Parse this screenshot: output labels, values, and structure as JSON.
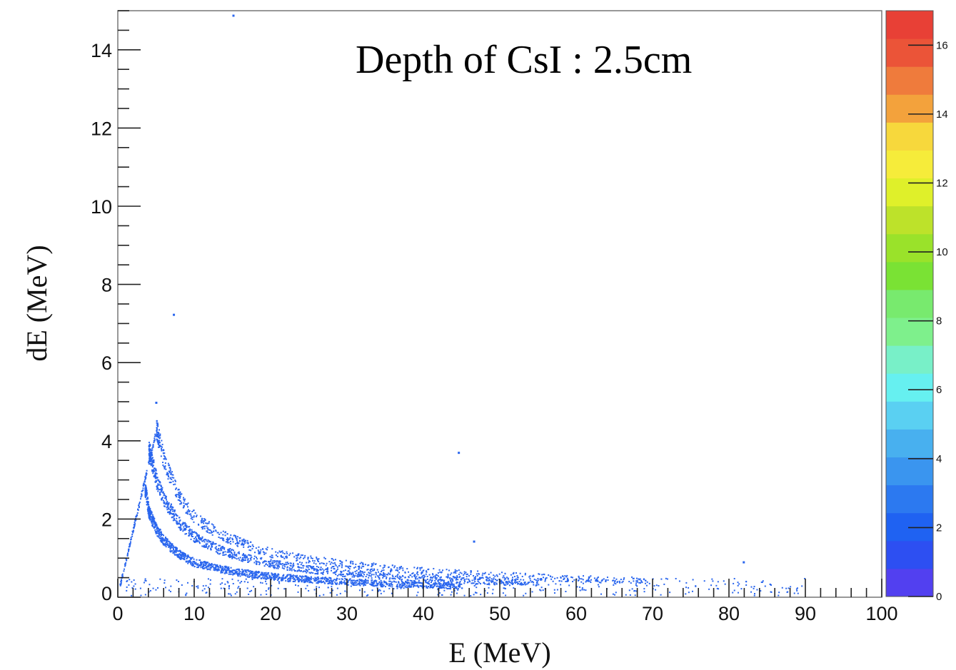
{
  "chart_data": {
    "type": "heatmap",
    "title": "",
    "annotation": "Depth of CsI : 2.5cm",
    "xlabel": "E (MeV)",
    "ylabel": "dE (MeV)",
    "xlim": [
      0,
      100
    ],
    "ylim": [
      0,
      15
    ],
    "x_ticks": [
      "0",
      "10",
      "20",
      "30",
      "40",
      "50",
      "60",
      "70",
      "80",
      "90",
      "100"
    ],
    "y_ticks": [
      "0",
      "2",
      "4",
      "6",
      "8",
      "10",
      "12",
      "14"
    ],
    "z_ticks": [
      "0",
      "2",
      "4",
      "6",
      "8",
      "10",
      "12",
      "14",
      "16"
    ],
    "zlim": [
      0,
      17
    ],
    "grid": false,
    "palette": [
      "#5240f0",
      "#2d4ff2",
      "#1f62f2",
      "#2c79f0",
      "#3a95ef",
      "#48b0ef",
      "#5ad0f2",
      "#66f0f0",
      "#78f0c8",
      "#7ef08c",
      "#78ea6e",
      "#7ae234",
      "#9ae22a",
      "#bde22a",
      "#dff02a",
      "#f6ec3a",
      "#f7d83c",
      "#f3a23c",
      "#ef7b3c",
      "#eb5438",
      "#e84036"
    ],
    "point_color": "#2a66ee",
    "bands": [
      {
        "name": "band-1",
        "x": [
          3.5,
          4,
          5,
          6,
          8,
          10,
          13,
          16,
          20,
          25,
          30,
          35,
          40,
          45
        ],
        "y": [
          2.8,
          2.2,
          1.75,
          1.45,
          1.1,
          0.9,
          0.75,
          0.64,
          0.55,
          0.47,
          0.41,
          0.36,
          0.33,
          0.3
        ]
      },
      {
        "name": "band-2",
        "x": [
          4,
          5,
          6,
          8,
          10,
          13,
          16,
          20,
          25,
          30,
          35,
          40,
          45,
          50,
          55
        ],
        "y": [
          3.8,
          3.0,
          2.5,
          1.9,
          1.55,
          1.25,
          1.05,
          0.87,
          0.73,
          0.63,
          0.56,
          0.5,
          0.45,
          0.41,
          0.38
        ]
      },
      {
        "name": "band-3",
        "x": [
          5,
          6,
          8,
          10,
          13,
          16,
          20,
          25,
          30,
          35,
          40,
          45,
          50,
          55,
          60,
          65,
          70
        ],
        "y": [
          4.3,
          3.5,
          2.55,
          2.05,
          1.65,
          1.4,
          1.15,
          0.97,
          0.85,
          0.76,
          0.68,
          0.62,
          0.57,
          0.53,
          0.49,
          0.46,
          0.44
        ]
      }
    ],
    "rise_line": {
      "x": [
        0.2,
        5.0
      ],
      "y": [
        0.3,
        4.3
      ]
    },
    "outliers": [
      {
        "x": 15,
        "y": 14.9
      },
      {
        "x": 7.2,
        "y": 7.25
      },
      {
        "x": 44.5,
        "y": 3.72
      },
      {
        "x": 46.5,
        "y": 1.45
      },
      {
        "x": 81.8,
        "y": 0.92
      },
      {
        "x": 4.9,
        "y": 5.0
      }
    ]
  }
}
